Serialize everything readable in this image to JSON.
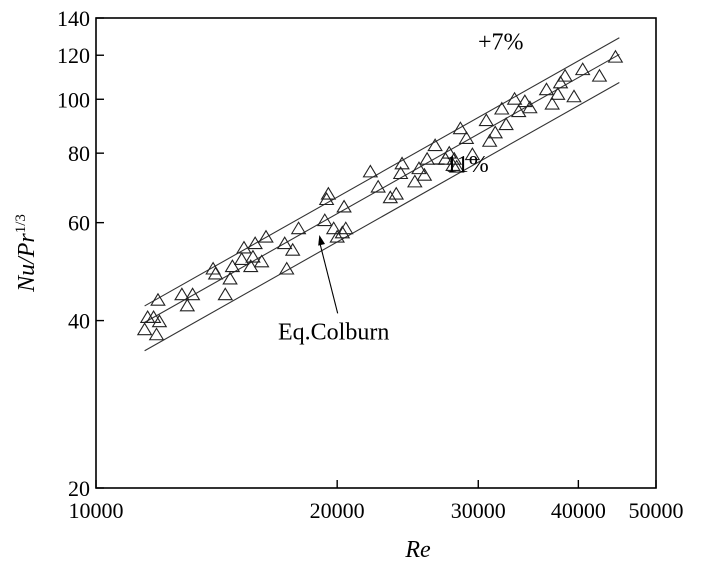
{
  "chart_data": {
    "type": "scatter",
    "title": "",
    "xlabel": "Re",
    "ylabel": "Nu/Pr",
    "ylabel_superscript": "1/3",
    "x_scale": "log",
    "y_scale": "log",
    "xlim": [
      10000,
      50000
    ],
    "ylim": [
      20,
      140
    ],
    "x_ticks": [
      10000,
      20000,
      30000,
      40000,
      50000
    ],
    "x_tick_labels": [
      "10000",
      "20000",
      "30000",
      "40000",
      "50000"
    ],
    "y_ticks": [
      20,
      40,
      60,
      80,
      100,
      120,
      140
    ],
    "y_tick_labels": [
      "20",
      "40",
      "60",
      "80",
      "100",
      "120",
      "140"
    ],
    "grid": false,
    "marker": "open-triangle",
    "lines": [
      {
        "label": "+7%",
        "x": [
          11500,
          45000
        ],
        "y": [
          42.5,
          129
        ]
      },
      {
        "label": "Eq.Colburn",
        "x": [
          11500,
          45000
        ],
        "y": [
          39.7,
          120.4
        ]
      },
      {
        "label": "−11%",
        "x": [
          11500,
          45000
        ],
        "y": [
          35.3,
          107.2
        ]
      }
    ],
    "annotations": [
      {
        "text": "+7%",
        "x": 32000,
        "y": 123
      },
      {
        "text": "−11%",
        "x": 28500,
        "y": 74
      },
      {
        "text": "Eq.Colburn",
        "x": 19800,
        "y": 37,
        "arrow_to": [
          19000,
          57
        ]
      }
    ],
    "points": [
      {
        "x": 11500,
        "y": 38.5
      },
      {
        "x": 11600,
        "y": 40.5
      },
      {
        "x": 11800,
        "y": 40.5
      },
      {
        "x": 11900,
        "y": 37.7
      },
      {
        "x": 12000,
        "y": 39.8
      },
      {
        "x": 11950,
        "y": 43.5
      },
      {
        "x": 12800,
        "y": 44.5
      },
      {
        "x": 13000,
        "y": 42.5
      },
      {
        "x": 13200,
        "y": 44.5
      },
      {
        "x": 14000,
        "y": 49.5
      },
      {
        "x": 14100,
        "y": 48.5
      },
      {
        "x": 14500,
        "y": 44.5
      },
      {
        "x": 14700,
        "y": 47.5
      },
      {
        "x": 14800,
        "y": 50
      },
      {
        "x": 15200,
        "y": 51.5
      },
      {
        "x": 15300,
        "y": 54
      },
      {
        "x": 15600,
        "y": 50
      },
      {
        "x": 15700,
        "y": 52
      },
      {
        "x": 15800,
        "y": 55
      },
      {
        "x": 16100,
        "y": 51
      },
      {
        "x": 16300,
        "y": 56.5
      },
      {
        "x": 17200,
        "y": 55
      },
      {
        "x": 17300,
        "y": 49.5
      },
      {
        "x": 17600,
        "y": 53.5
      },
      {
        "x": 17900,
        "y": 58.5
      },
      {
        "x": 19300,
        "y": 60.5
      },
      {
        "x": 19400,
        "y": 66
      },
      {
        "x": 19500,
        "y": 67.5
      },
      {
        "x": 19800,
        "y": 58.5
      },
      {
        "x": 20000,
        "y": 56.5
      },
      {
        "x": 20300,
        "y": 57.5
      },
      {
        "x": 20400,
        "y": 64
      },
      {
        "x": 20500,
        "y": 58.5
      },
      {
        "x": 22000,
        "y": 74
      },
      {
        "x": 22500,
        "y": 69.5
      },
      {
        "x": 23300,
        "y": 66.5
      },
      {
        "x": 23700,
        "y": 67.5
      },
      {
        "x": 24000,
        "y": 73.5
      },
      {
        "x": 24100,
        "y": 76.5
      },
      {
        "x": 25000,
        "y": 71
      },
      {
        "x": 25300,
        "y": 75
      },
      {
        "x": 25700,
        "y": 73
      },
      {
        "x": 25900,
        "y": 78
      },
      {
        "x": 26500,
        "y": 82.5
      },
      {
        "x": 27300,
        "y": 78
      },
      {
        "x": 27600,
        "y": 80
      },
      {
        "x": 27900,
        "y": 76
      },
      {
        "x": 28000,
        "y": 78
      },
      {
        "x": 28200,
        "y": 75.5
      },
      {
        "x": 28500,
        "y": 88.5
      },
      {
        "x": 29000,
        "y": 85
      },
      {
        "x": 29500,
        "y": 79.5
      },
      {
        "x": 30700,
        "y": 91.5
      },
      {
        "x": 31000,
        "y": 84
      },
      {
        "x": 31500,
        "y": 87
      },
      {
        "x": 32100,
        "y": 96
      },
      {
        "x": 32500,
        "y": 90
      },
      {
        "x": 33300,
        "y": 100
      },
      {
        "x": 33700,
        "y": 95
      },
      {
        "x": 34300,
        "y": 99
      },
      {
        "x": 34800,
        "y": 96.5
      },
      {
        "x": 36500,
        "y": 104
      },
      {
        "x": 37100,
        "y": 98
      },
      {
        "x": 37700,
        "y": 102
      },
      {
        "x": 38000,
        "y": 107
      },
      {
        "x": 38500,
        "y": 110
      },
      {
        "x": 39500,
        "y": 101
      },
      {
        "x": 40500,
        "y": 113
      },
      {
        "x": 42500,
        "y": 110
      },
      {
        "x": 44500,
        "y": 119
      }
    ]
  }
}
